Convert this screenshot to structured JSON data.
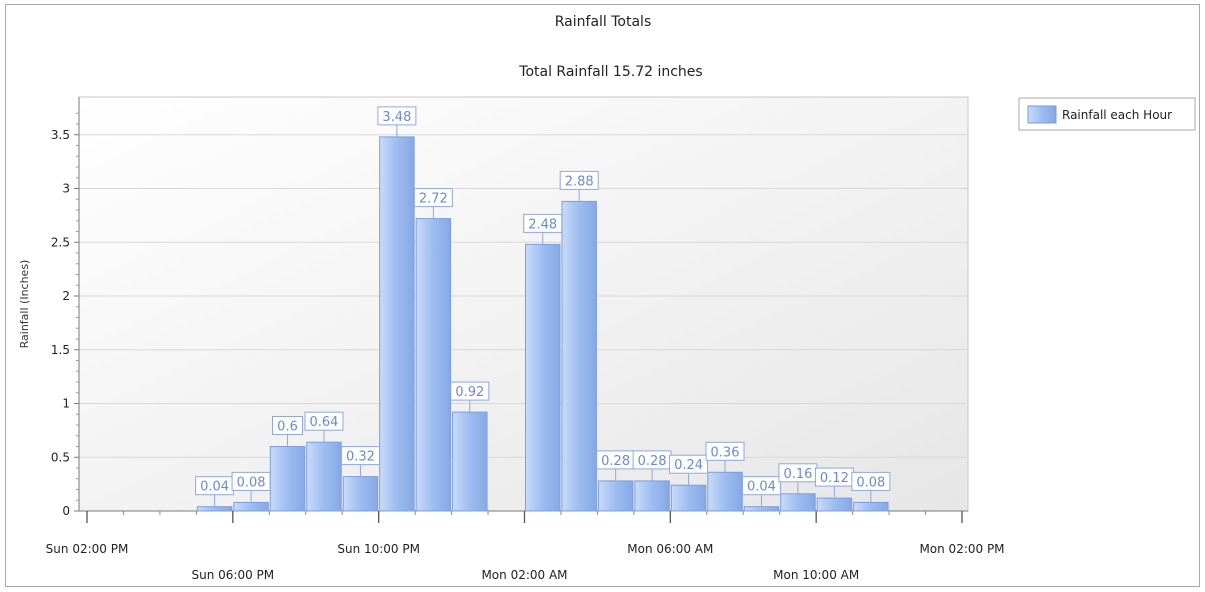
{
  "chart_data": {
    "type": "bar",
    "title": "Rainfall Totals",
    "subtitle": "Total Rainfall 15.72 inches",
    "ylabel": "Rainfall (Inches)",
    "xlabel": "",
    "ylim": [
      0,
      3.8
    ],
    "yticks": [
      0,
      0.5,
      1,
      1.5,
      2,
      2.5,
      3,
      3.5
    ],
    "ytick_labels": [
      "0",
      "0.5",
      "1",
      "1.5",
      "2",
      "2.5",
      "3",
      "3.5"
    ],
    "x_axis": {
      "range_hours": [
        0,
        24
      ],
      "major_ticks": [
        {
          "hour": 0,
          "label": "Sun 02:00 PM"
        },
        {
          "hour": 4,
          "label": "Sun 06:00 PM"
        },
        {
          "hour": 8,
          "label": "Sun 10:00 PM"
        },
        {
          "hour": 12,
          "label": "Mon 02:00 AM"
        },
        {
          "hour": 16,
          "label": "Mon 06:00 AM"
        },
        {
          "hour": 20,
          "label": "Mon 10:00 AM"
        },
        {
          "hour": 24,
          "label": "Mon 02:00 PM"
        }
      ]
    },
    "legend": {
      "position": "top-right",
      "entries": [
        "Rainfall each Hour"
      ]
    },
    "grid": true,
    "series": [
      {
        "name": "Rainfall each Hour",
        "color": "#9dbcf0",
        "points": [
          {
            "hour": 3,
            "value": 0.04,
            "label": "0.04"
          },
          {
            "hour": 4,
            "value": 0.08,
            "label": "0.08"
          },
          {
            "hour": 5,
            "value": 0.6,
            "label": "0.6"
          },
          {
            "hour": 6,
            "value": 0.64,
            "label": "0.64"
          },
          {
            "hour": 7,
            "value": 0.32,
            "label": "0.32"
          },
          {
            "hour": 8,
            "value": 3.48,
            "label": "3.48"
          },
          {
            "hour": 9,
            "value": 2.72,
            "label": "2.72"
          },
          {
            "hour": 10,
            "value": 0.92,
            "label": "0.92"
          },
          {
            "hour": 12,
            "value": 2.48,
            "label": "2.48"
          },
          {
            "hour": 13,
            "value": 2.88,
            "label": "2.88"
          },
          {
            "hour": 14,
            "value": 0.28,
            "label": "0.28"
          },
          {
            "hour": 15,
            "value": 0.28,
            "label": "0.28"
          },
          {
            "hour": 16,
            "value": 0.24,
            "label": "0.24"
          },
          {
            "hour": 17,
            "value": 0.36,
            "label": "0.36"
          },
          {
            "hour": 18,
            "value": 0.04,
            "label": "0.04"
          },
          {
            "hour": 19,
            "value": 0.16,
            "label": "0.16"
          },
          {
            "hour": 20,
            "value": 0.12,
            "label": "0.12"
          },
          {
            "hour": 21,
            "value": 0.08,
            "label": "0.08"
          }
        ]
      }
    ]
  }
}
